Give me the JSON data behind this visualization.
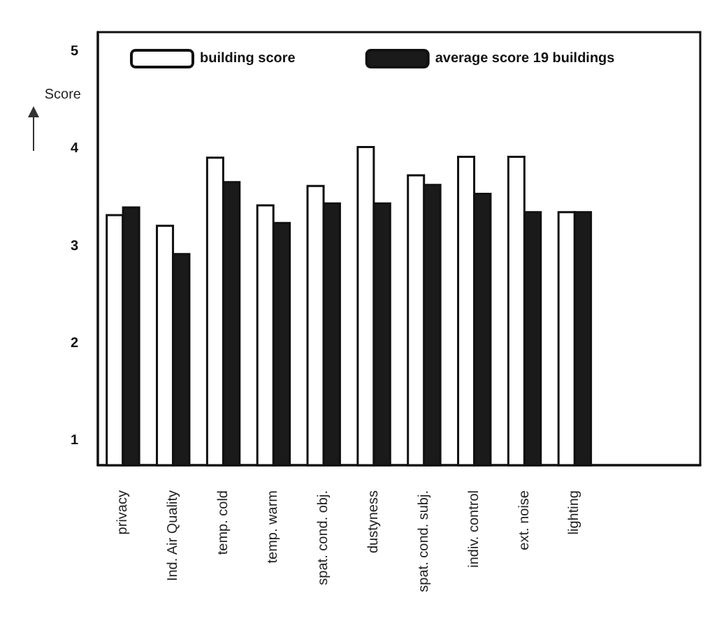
{
  "chart_data": {
    "type": "bar",
    "ylabel": "Score",
    "categories": [
      "privacy",
      "Ind. Air Quality",
      "temp. cold",
      "temp. warm",
      "spat. cond. obj.",
      "dustyness",
      "spat. cond. subj.",
      "indiv. control",
      "ext. noise",
      "lighting",
      null,
      null
    ],
    "series": [
      {
        "name": "building score",
        "color": "#ffffff",
        "values": [
          3.33,
          3.22,
          3.92,
          3.43,
          3.63,
          4.03,
          3.74,
          3.93,
          3.93,
          3.36,
          null,
          null
        ]
      },
      {
        "name": "average score 19 buildings",
        "color": "#1a1a1a",
        "values": [
          3.41,
          2.93,
          3.67,
          3.25,
          3.45,
          3.45,
          3.64,
          3.55,
          3.36,
          3.36,
          null,
          null
        ]
      }
    ],
    "ylim": [
      0.75,
      5.2
    ],
    "yticks": [
      1,
      2,
      3,
      4,
      5
    ],
    "grid": false,
    "legend": "top"
  }
}
